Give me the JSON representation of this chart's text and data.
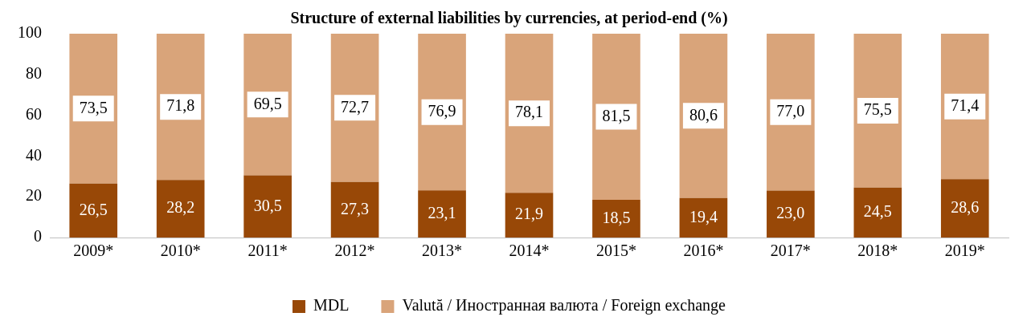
{
  "chart_data": {
    "type": "bar",
    "title": "Structure of external liabilities by currencies, at period-end (%)",
    "stacked": true,
    "categories": [
      "2009*",
      "2010*",
      "2011*",
      "2012*",
      "2013*",
      "2014*",
      "2015*",
      "2016*",
      "2017*",
      "2018*",
      "2019*"
    ],
    "series": [
      {
        "name": "MDL",
        "color": "#984807",
        "values": [
          26.5,
          28.2,
          30.5,
          27.3,
          23.1,
          21.9,
          18.5,
          19.4,
          23.0,
          24.5,
          28.6
        ],
        "value_labels": [
          "26,5",
          "28,2",
          "30,5",
          "27,3",
          "23,1",
          "21,9",
          "18,5",
          "19,4",
          "23,0",
          "24,5",
          "28,6"
        ]
      },
      {
        "name": "Valută / Иностранная валюта / Foreign exchange",
        "color": "#d9a47a",
        "values": [
          73.5,
          71.8,
          69.5,
          72.7,
          76.9,
          78.1,
          81.5,
          80.6,
          77.0,
          75.5,
          71.4
        ],
        "value_labels": [
          "73,5",
          "71,8",
          "69,5",
          "72,7",
          "76,9",
          "78,1",
          "81,5",
          "80,6",
          "77,0",
          "75,5",
          "71,4"
        ]
      }
    ],
    "ylim": [
      0,
      100
    ],
    "yticks": [
      0,
      20,
      40,
      60,
      80,
      100
    ],
    "grid": false,
    "legend": "bottom"
  }
}
